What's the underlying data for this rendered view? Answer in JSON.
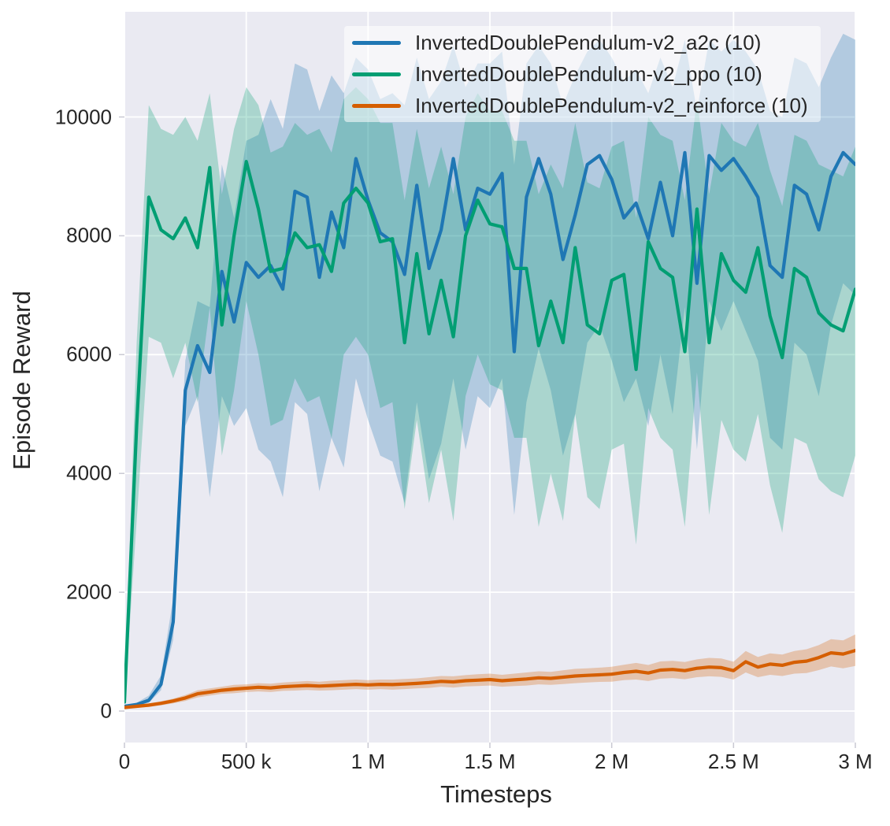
{
  "figure": {
    "background": "#ffffff",
    "plot_bg": "#eaeaf2",
    "grid_color": "#ffffff",
    "text_color": "#262626",
    "tick_color": "#c9c9d3"
  },
  "chart_data": {
    "type": "line",
    "title": "",
    "xlabel": "Timesteps",
    "ylabel": "Episode Reward",
    "grid": true,
    "legend_position": "upper center",
    "xlim_k": [
      0,
      3000
    ],
    "ylim": [
      -530,
      11770
    ],
    "x_unit": "timesteps, values in thousands",
    "xticks": [
      {
        "v_k": 0,
        "label": "0"
      },
      {
        "v_k": 500,
        "label": "500 k"
      },
      {
        "v_k": 1000,
        "label": "1 M"
      },
      {
        "v_k": 1500,
        "label": "1.5 M"
      },
      {
        "v_k": 2000,
        "label": "2 M"
      },
      {
        "v_k": 2500,
        "label": "2.5 M"
      },
      {
        "v_k": 3000,
        "label": "3 M"
      }
    ],
    "yticks": [
      {
        "v": 0,
        "label": "0"
      },
      {
        "v": 2000,
        "label": "2000"
      },
      {
        "v": 4000,
        "label": "4000"
      },
      {
        "v": 6000,
        "label": "6000"
      },
      {
        "v": 8000,
        "label": "8000"
      },
      {
        "v": 10000,
        "label": "10000"
      }
    ],
    "x_k": [
      0,
      50,
      100,
      150,
      200,
      250,
      300,
      350,
      400,
      450,
      500,
      550,
      600,
      650,
      700,
      750,
      800,
      850,
      900,
      950,
      1000,
      1050,
      1100,
      1150,
      1200,
      1250,
      1300,
      1350,
      1400,
      1450,
      1500,
      1550,
      1600,
      1650,
      1700,
      1750,
      1800,
      1850,
      1900,
      1950,
      2000,
      2050,
      2100,
      2150,
      2200,
      2250,
      2300,
      2350,
      2400,
      2450,
      2500,
      2550,
      2600,
      2650,
      2700,
      2750,
      2800,
      2850,
      2900,
      2950,
      3000
    ],
    "series": [
      {
        "id": "a2c",
        "name": "InvertedDoublePendulum-v2_a2c (10)",
        "color": "#1f77b4",
        "values": [
          80,
          110,
          180,
          450,
          1500,
          5400,
          6150,
          5700,
          7400,
          6550,
          7550,
          7300,
          7500,
          7100,
          8750,
          8650,
          7300,
          8400,
          7800,
          9300,
          8600,
          8050,
          7900,
          7350,
          8850,
          7450,
          8100,
          9300,
          8100,
          8800,
          8700,
          9050,
          6050,
          8650,
          9300,
          8700,
          7600,
          8350,
          9200,
          9350,
          8950,
          8300,
          8550,
          7950,
          8900,
          8000,
          9400,
          7200,
          9350,
          9100,
          9300,
          9000,
          8650,
          7500,
          7300,
          8850,
          8700,
          8100,
          9000,
          9400,
          9200
        ],
        "band_lo": [
          60,
          90,
          140,
          350,
          1200,
          4800,
          5300,
          3600,
          5300,
          4800,
          5100,
          4400,
          4200,
          3600,
          5200,
          5000,
          3700,
          4600,
          4100,
          5600,
          4900,
          4300,
          4200,
          3500,
          5200,
          3900,
          4500,
          5600,
          4400,
          5300,
          5100,
          5600,
          3300,
          5200,
          6100,
          5400,
          4300,
          5000,
          6200,
          6500,
          5900,
          5200,
          5600,
          4800,
          6000,
          5000,
          6800,
          4400,
          6900,
          6400,
          6900,
          6400,
          5900,
          4600,
          4400,
          6200,
          6000,
          5300,
          6500,
          7200,
          7000
        ],
        "band_hi": [
          100,
          140,
          260,
          600,
          1900,
          5900,
          6900,
          6800,
          9200,
          8300,
          9600,
          9700,
          10300,
          9800,
          10900,
          10800,
          10100,
          10700,
          10400,
          11000,
          10800,
          10300,
          10400,
          10200,
          11000,
          10300,
          10600,
          11200,
          10500,
          10900,
          10900,
          11100,
          9200,
          10900,
          11200,
          10900,
          10200,
          10700,
          11100,
          11300,
          11000,
          10600,
          10800,
          10400,
          11000,
          10500,
          11300,
          10100,
          11300,
          11100,
          11300,
          11100,
          10800,
          10100,
          10000,
          11000,
          10900,
          10500,
          11000,
          11400,
          11300
        ]
      },
      {
        "id": "ppo",
        "name": "InvertedDoublePendulum-v2_ppo (10)",
        "color": "#029e73",
        "values": [
          150,
          4800,
          8650,
          8100,
          7950,
          8300,
          7800,
          9150,
          6500,
          8000,
          9250,
          8450,
          7400,
          7450,
          8050,
          7800,
          7850,
          7400,
          8550,
          8800,
          8550,
          7900,
          7950,
          6200,
          7700,
          6350,
          7250,
          6300,
          8000,
          8600,
          8200,
          8150,
          7450,
          7450,
          6150,
          6900,
          6200,
          7800,
          6500,
          6350,
          7250,
          7350,
          5750,
          7900,
          7450,
          7300,
          6050,
          8450,
          6200,
          7700,
          7250,
          7050,
          7800,
          6650,
          5950,
          7450,
          7300,
          6700,
          6500,
          6400,
          7100
        ],
        "band_lo": [
          100,
          3200,
          6300,
          6200,
          5600,
          6200,
          5200,
          6800,
          4300,
          5400,
          6900,
          6000,
          4800,
          4900,
          5600,
          5200,
          5300,
          4600,
          6000,
          6300,
          6000,
          5100,
          5200,
          3400,
          4900,
          3500,
          4400,
          3200,
          5300,
          6000,
          5500,
          5400,
          4600,
          4600,
          3100,
          4000,
          3200,
          5000,
          3600,
          3400,
          4400,
          4500,
          2800,
          5100,
          4600,
          4400,
          3100,
          5700,
          3300,
          4900,
          4400,
          4200,
          5000,
          3800,
          3000,
          4600,
          4500,
          3900,
          3700,
          3600,
          4300
        ],
        "band_hi": [
          200,
          6200,
          10200,
          9800,
          9700,
          10000,
          9600,
          10400,
          8700,
          9800,
          10500,
          10200,
          9400,
          9500,
          9900,
          9700,
          9800,
          9400,
          10300,
          10500,
          10300,
          9900,
          9900,
          8600,
          9800,
          8800,
          9500,
          8700,
          10000,
          10400,
          10100,
          10100,
          9600,
          9600,
          8700,
          9200,
          8800,
          9900,
          8900,
          8800,
          9500,
          9600,
          8300,
          10000,
          9700,
          9600,
          8600,
          10300,
          8700,
          9900,
          9600,
          9500,
          9900,
          9100,
          8500,
          9700,
          9600,
          9200,
          9100,
          9000,
          9500
        ]
      },
      {
        "id": "reinforce",
        "name": "InvertedDoublePendulum-v2_reinforce (10)",
        "color": "#d55e00",
        "values": [
          60,
          80,
          100,
          130,
          170,
          220,
          290,
          320,
          350,
          370,
          385,
          400,
          390,
          410,
          420,
          430,
          420,
          430,
          440,
          450,
          440,
          450,
          445,
          455,
          465,
          480,
          500,
          490,
          510,
          520,
          530,
          510,
          525,
          540,
          560,
          550,
          570,
          590,
          600,
          610,
          620,
          650,
          670,
          640,
          690,
          700,
          680,
          720,
          740,
          730,
          680,
          830,
          740,
          790,
          770,
          820,
          840,
          900,
          980,
          960,
          1020
        ],
        "band_lo": [
          40,
          55,
          70,
          95,
          130,
          170,
          230,
          260,
          290,
          300,
          320,
          330,
          320,
          340,
          345,
          355,
          345,
          350,
          360,
          370,
          360,
          370,
          360,
          370,
          380,
          390,
          410,
          395,
          415,
          420,
          430,
          410,
          420,
          430,
          450,
          440,
          455,
          470,
          480,
          490,
          495,
          520,
          530,
          505,
          545,
          555,
          535,
          570,
          585,
          575,
          530,
          650,
          570,
          610,
          590,
          630,
          640,
          690,
          750,
          720,
          760
        ],
        "band_hi": [
          80,
          105,
          130,
          165,
          210,
          270,
          350,
          380,
          410,
          440,
          450,
          470,
          460,
          480,
          495,
          505,
          495,
          510,
          520,
          530,
          520,
          530,
          530,
          540,
          550,
          570,
          590,
          585,
          605,
          620,
          630,
          610,
          630,
          650,
          670,
          660,
          685,
          710,
          720,
          730,
          745,
          780,
          810,
          775,
          835,
          845,
          825,
          870,
          895,
          885,
          830,
          1010,
          910,
          970,
          950,
          1010,
          1040,
          1110,
          1210,
          1190,
          1290
        ]
      }
    ]
  }
}
